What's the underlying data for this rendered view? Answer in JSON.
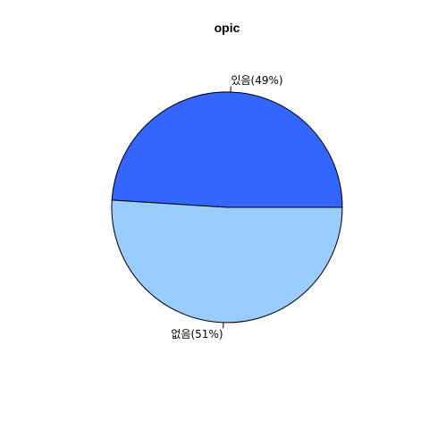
{
  "chart_data": {
    "type": "pie",
    "title": "opic",
    "slices": [
      {
        "label": "있음(49%)",
        "category": "있음",
        "value": 49,
        "color": "#3366FF"
      },
      {
        "label": "없음(51%)",
        "category": "없음",
        "value": 51,
        "color": "#99CCFF"
      }
    ],
    "start_angle_deg": 0,
    "direction": "counterclockwise",
    "border_color": "#000000"
  }
}
